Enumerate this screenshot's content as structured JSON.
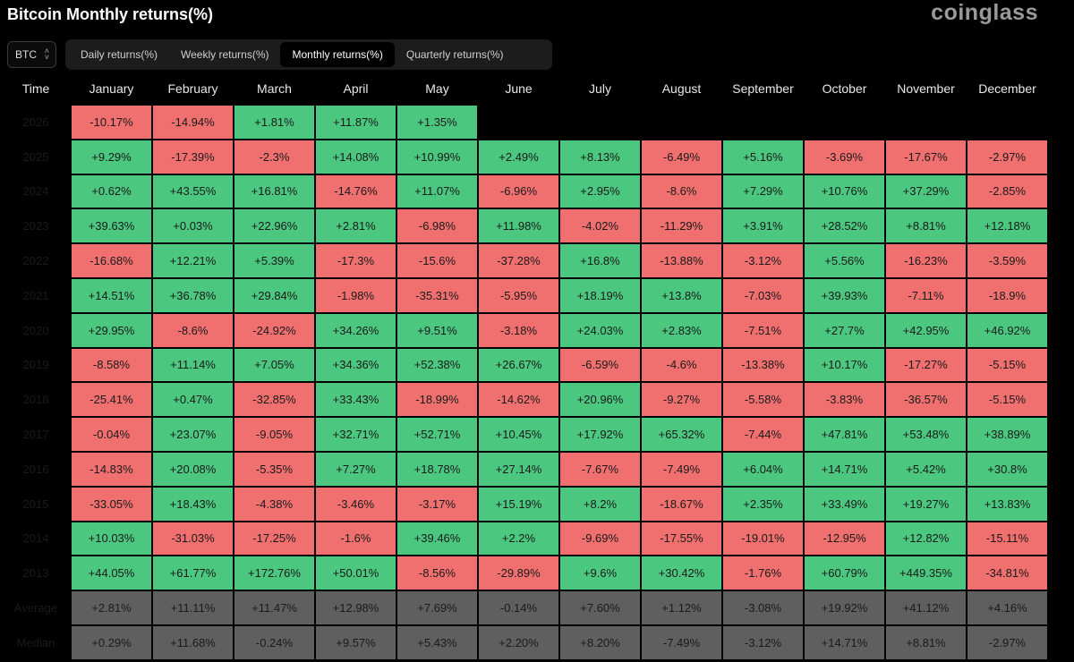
{
  "header": {
    "title": "Bitcoin Monthly returns(%)",
    "brand": "coinglass"
  },
  "asset_select": {
    "value": "BTC"
  },
  "tabs": [
    {
      "label": "Daily returns(%)",
      "active": false
    },
    {
      "label": "Weekly returns(%)",
      "active": false
    },
    {
      "label": "Monthly returns(%)",
      "active": true
    },
    {
      "label": "Quarterly returns(%)",
      "active": false
    }
  ],
  "table": {
    "headers": [
      "Time",
      "January",
      "February",
      "March",
      "April",
      "May",
      "June",
      "July",
      "August",
      "September",
      "October",
      "November",
      "December"
    ],
    "rows": [
      {
        "year": "2026",
        "values": [
          "-10.17%",
          "-14.94%",
          "+1.81%",
          "+11.87%",
          "+1.35%",
          "",
          "",
          "",
          "",
          "",
          "",
          ""
        ]
      },
      {
        "year": "2025",
        "values": [
          "+9.29%",
          "-17.39%",
          "-2.3%",
          "+14.08%",
          "+10.99%",
          "+2.49%",
          "+8.13%",
          "-6.49%",
          "+5.16%",
          "-3.69%",
          "-17.67%",
          "-2.97%"
        ]
      },
      {
        "year": "2024",
        "values": [
          "+0.62%",
          "+43.55%",
          "+16.81%",
          "-14.76%",
          "+11.07%",
          "-6.96%",
          "+2.95%",
          "-8.6%",
          "+7.29%",
          "+10.76%",
          "+37.29%",
          "-2.85%"
        ]
      },
      {
        "year": "2023",
        "values": [
          "+39.63%",
          "+0.03%",
          "+22.96%",
          "+2.81%",
          "-6.98%",
          "+11.98%",
          "-4.02%",
          "-11.29%",
          "+3.91%",
          "+28.52%",
          "+8.81%",
          "+12.18%"
        ]
      },
      {
        "year": "2022",
        "values": [
          "-16.68%",
          "+12.21%",
          "+5.39%",
          "-17.3%",
          "-15.6%",
          "-37.28%",
          "+16.8%",
          "-13.88%",
          "-3.12%",
          "+5.56%",
          "-16.23%",
          "-3.59%"
        ]
      },
      {
        "year": "2021",
        "values": [
          "+14.51%",
          "+36.78%",
          "+29.84%",
          "-1.98%",
          "-35.31%",
          "-5.95%",
          "+18.19%",
          "+13.8%",
          "-7.03%",
          "+39.93%",
          "-7.11%",
          "-18.9%"
        ]
      },
      {
        "year": "2020",
        "values": [
          "+29.95%",
          "-8.6%",
          "-24.92%",
          "+34.26%",
          "+9.51%",
          "-3.18%",
          "+24.03%",
          "+2.83%",
          "-7.51%",
          "+27.7%",
          "+42.95%",
          "+46.92%"
        ]
      },
      {
        "year": "2019",
        "values": [
          "-8.58%",
          "+11.14%",
          "+7.05%",
          "+34.36%",
          "+52.38%",
          "+26.67%",
          "-6.59%",
          "-4.6%",
          "-13.38%",
          "+10.17%",
          "-17.27%",
          "-5.15%"
        ]
      },
      {
        "year": "2018",
        "values": [
          "-25.41%",
          "+0.47%",
          "-32.85%",
          "+33.43%",
          "-18.99%",
          "-14.62%",
          "+20.96%",
          "-9.27%",
          "-5.58%",
          "-3.83%",
          "-36.57%",
          "-5.15%"
        ]
      },
      {
        "year": "2017",
        "values": [
          "-0.04%",
          "+23.07%",
          "-9.05%",
          "+32.71%",
          "+52.71%",
          "+10.45%",
          "+17.92%",
          "+65.32%",
          "-7.44%",
          "+47.81%",
          "+53.48%",
          "+38.89%"
        ]
      },
      {
        "year": "2016",
        "values": [
          "-14.83%",
          "+20.08%",
          "-5.35%",
          "+7.27%",
          "+18.78%",
          "+27.14%",
          "-7.67%",
          "-7.49%",
          "+6.04%",
          "+14.71%",
          "+5.42%",
          "+30.8%"
        ]
      },
      {
        "year": "2015",
        "values": [
          "-33.05%",
          "+18.43%",
          "-4.38%",
          "-3.46%",
          "-3.17%",
          "+15.19%",
          "+8.2%",
          "-18.67%",
          "+2.35%",
          "+33.49%",
          "+19.27%",
          "+13.83%"
        ]
      },
      {
        "year": "2014",
        "values": [
          "+10.03%",
          "-31.03%",
          "-17.25%",
          "-1.6%",
          "+39.46%",
          "+2.2%",
          "-9.69%",
          "-17.55%",
          "-19.01%",
          "-12.95%",
          "+12.82%",
          "-15.11%"
        ]
      },
      {
        "year": "2013",
        "values": [
          "+44.05%",
          "+61.77%",
          "+172.76%",
          "+50.01%",
          "-8.56%",
          "-29.89%",
          "+9.6%",
          "+30.42%",
          "-1.76%",
          "+60.79%",
          "+449.35%",
          "-34.81%"
        ]
      }
    ],
    "summary": [
      {
        "label": "Average",
        "values": [
          "+2.81%",
          "+11.11%",
          "+11.47%",
          "+12.98%",
          "+7.69%",
          "-0.14%",
          "+7.60%",
          "+1.12%",
          "-3.08%",
          "+19.92%",
          "+41.12%",
          "+4.16%"
        ]
      },
      {
        "label": "Median",
        "values": [
          "+0.29%",
          "+11.68%",
          "-0.24%",
          "+9.57%",
          "+5.43%",
          "+2.20%",
          "+8.20%",
          "-7.49%",
          "-3.12%",
          "+14.71%",
          "+8.81%",
          "-2.97%"
        ]
      }
    ]
  },
  "colors": {
    "positive": "#4bc77f",
    "negative": "#f07070",
    "summary": "#5f5f5f",
    "background": "#000000"
  }
}
